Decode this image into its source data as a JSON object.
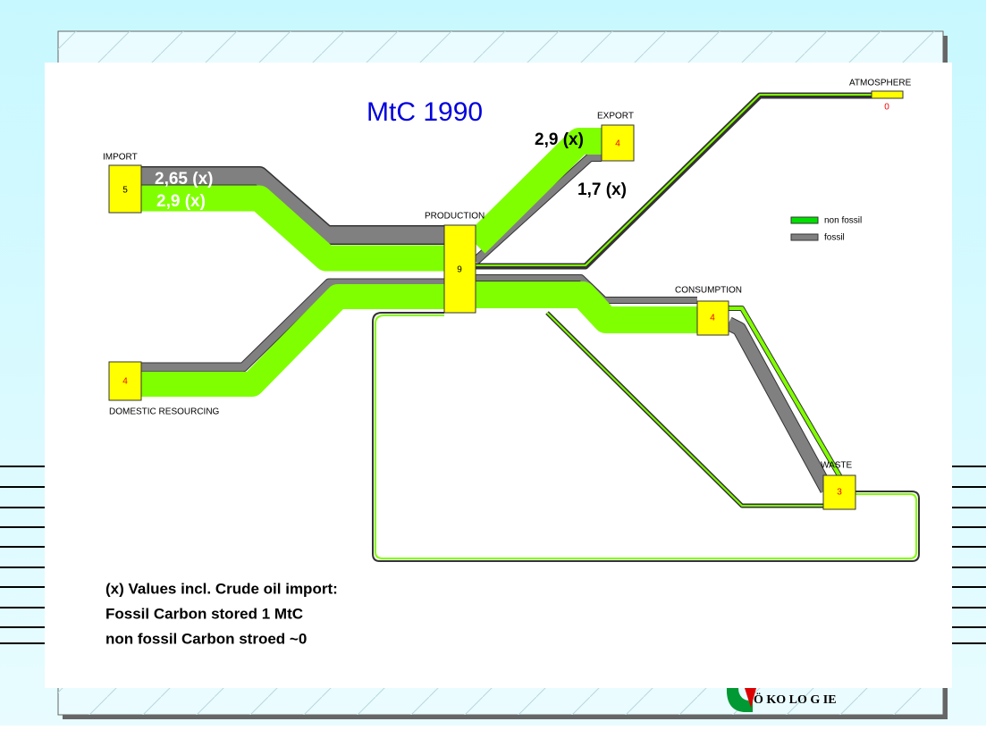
{
  "title": "MtC 1990",
  "nodes": [
    {
      "label": "IMPORT",
      "value": "5"
    },
    {
      "label": "DOMESTIC RESOURCING",
      "value": "4"
    },
    {
      "label": "PRODUCTION",
      "value": "9"
    },
    {
      "label": "EXPORT",
      "value": "4"
    },
    {
      "label": "CONSUMPTION",
      "value": "4"
    },
    {
      "label": "WASTE",
      "value": "3"
    },
    {
      "label": "ATMOSPHERE",
      "value": "0"
    }
  ],
  "flow_labels": [
    "2,65 (x)",
    "2,9 (x)",
    "2,9 (x)",
    "1,7 (x)"
  ],
  "legend": [
    "non fossil",
    "fossil"
  ],
  "notes": [
    "(x) Values incl. Crude oil import:",
    "Fossil Carbon stored  1 MtC",
    "non fossil Carbon stroed  ~0"
  ],
  "logo": "Ö KO LO G IE"
}
